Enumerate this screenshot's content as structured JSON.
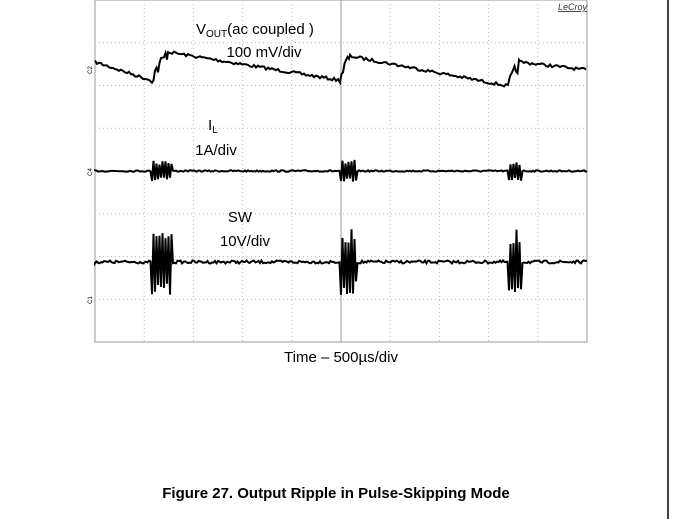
{
  "scope": {
    "brand": "LeCroy",
    "channel_markers": [
      "C2",
      "C4",
      "C1"
    ],
    "vout": {
      "main": "V",
      "sub": "OUT",
      "rest": "(ac coupled )",
      "scale": "100 mV/div"
    },
    "il": {
      "main": "I",
      "sub": "L",
      "scale": "1A/div"
    },
    "sw": {
      "name": "SW",
      "scale": "10V/div"
    },
    "time_label": "Time – 500µs/div"
  },
  "caption": "Figure 27. Output Ripple in Pulse-Skipping Mode"
}
